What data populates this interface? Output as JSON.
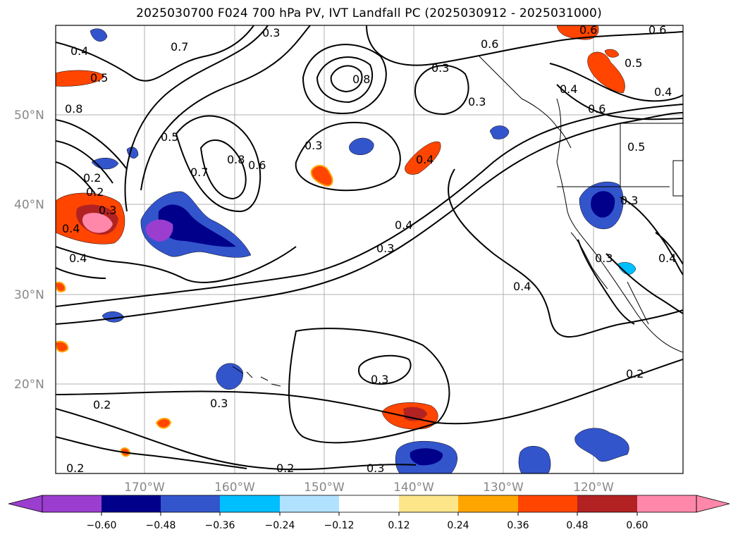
{
  "title": "2025030700 F024 700 hPa PV, IVT Landfall PC (2025030912 - 2025031000)",
  "chart_data": {
    "type": "map",
    "grid": true,
    "lat_labels": [
      "50°N",
      "40°N",
      "30°N",
      "20°N"
    ],
    "lon_labels": [
      "170°W",
      "160°W",
      "150°W",
      "140°W",
      "130°W",
      "120°W"
    ],
    "contour_labels": [
      "0.4",
      "0.7",
      "0.3",
      "0.3",
      "0.6",
      "0.8",
      "0.5",
      "0.3",
      "0.8",
      "0.5",
      "0.7",
      "0.8",
      "0.6",
      "0.3",
      "0.4",
      "0.5",
      "0.6",
      "0.5",
      "0.2",
      "0.3",
      "0.4",
      "0.4",
      "0.4",
      "0.3",
      "0.4",
      "0.3",
      "0.3",
      "0.4",
      "0.3",
      "0.2",
      "0.2",
      "0.3",
      "0.3",
      "0.2",
      "0.2",
      "0.2",
      "0.4",
      "0.4",
      "0.6",
      "0.6"
    ],
    "colorbar": {
      "orientation": "horizontal",
      "extend": "both",
      "colors": [
        "#9b3ecf",
        "#00008b",
        "#3355cc",
        "#00bfff",
        "#b0e2ff",
        "#ffffff",
        "#fde68a",
        "#ffa500",
        "#ff4500",
        "#b22222",
        "#ff88aa"
      ],
      "tick_labels": [
        "−0.60",
        "−0.48",
        "−0.36",
        "−0.24",
        "−0.12",
        "0.12",
        "0.24",
        "0.36",
        "0.48",
        "0.60"
      ]
    }
  }
}
